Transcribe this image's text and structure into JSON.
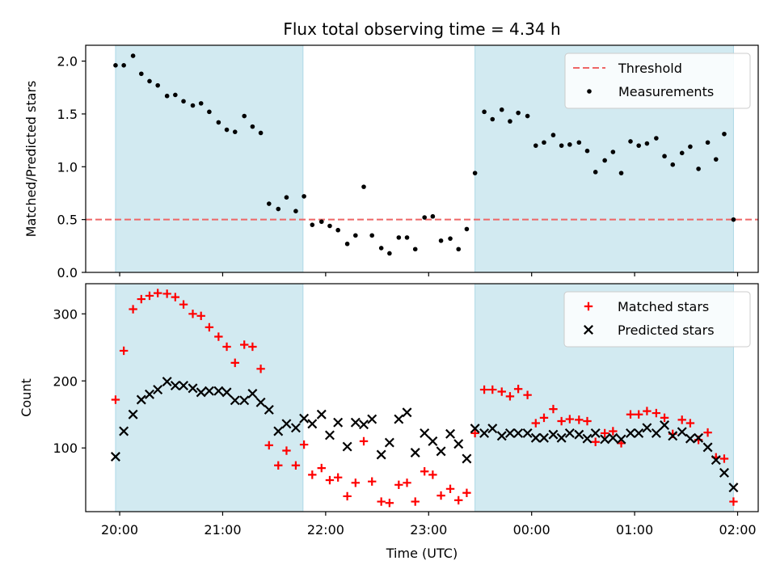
{
  "chart_data": {
    "type": "scatter",
    "title": "Flux total observing time = 4.34 h",
    "xlabel": "Time (UTC)",
    "x_unit": "hours since 20:00 UTC",
    "xlim": [
      -0.33,
      6.2
    ],
    "xticks": [
      {
        "value": 0,
        "label": "20:00"
      },
      {
        "value": 1,
        "label": "21:00"
      },
      {
        "value": 2,
        "label": "22:00"
      },
      {
        "value": 3,
        "label": "23:00"
      },
      {
        "value": 4,
        "label": "00:00"
      },
      {
        "value": 5,
        "label": "01:00"
      },
      {
        "value": 6,
        "label": "02:00"
      }
    ],
    "shaded_intervals": [
      [
        -0.04,
        1.78
      ],
      [
        3.45,
        5.96
      ]
    ],
    "shade_color": "#add8e6",
    "panels": [
      {
        "id": "ratio",
        "ylabel": "Matched/Predicted stars",
        "ylim": [
          0.0,
          2.15
        ],
        "yticks": [
          0.0,
          0.5,
          1.0,
          1.5,
          2.0
        ],
        "ytick_labels": [
          "0.0",
          "0.5",
          "1.0",
          "1.5",
          "2.0"
        ],
        "legend": {
          "position": "top-right"
        },
        "threshold": {
          "name": "Threshold",
          "value": 0.5,
          "color": "#ee6666",
          "style": "dashed"
        },
        "series": [
          {
            "name": "Measurements",
            "marker": "dot",
            "color": "#000000",
            "x": [
              -0.04,
              0.04,
              0.13,
              0.21,
              0.29,
              0.37,
              0.46,
              0.54,
              0.62,
              0.71,
              0.79,
              0.87,
              0.96,
              1.04,
              1.12,
              1.21,
              1.29,
              1.37,
              1.45,
              1.54,
              1.62,
              1.71,
              1.79,
              1.87,
              1.96,
              2.04,
              2.12,
              2.21,
              2.29,
              2.37,
              2.45,
              2.54,
              2.62,
              2.71,
              2.79,
              2.87,
              2.96,
              3.04,
              3.12,
              3.21,
              3.29,
              3.37,
              3.45,
              3.54,
              3.62,
              3.71,
              3.79,
              3.87,
              3.96,
              4.04,
              4.12,
              4.21,
              4.29,
              4.37,
              4.46,
              4.54,
              4.62,
              4.71,
              4.79,
              4.87,
              4.96,
              5.04,
              5.12,
              5.21,
              5.29,
              5.37,
              5.46,
              5.54,
              5.62,
              5.71,
              5.79,
              5.87,
              5.96
            ],
            "y": [
              1.96,
              1.96,
              2.05,
              1.88,
              1.81,
              1.77,
              1.67,
              1.68,
              1.62,
              1.58,
              1.6,
              1.52,
              1.42,
              1.35,
              1.33,
              1.48,
              1.38,
              1.32,
              0.65,
              0.6,
              0.71,
              0.58,
              0.72,
              0.45,
              0.48,
              0.44,
              0.4,
              0.27,
              0.35,
              0.81,
              0.35,
              0.23,
              0.18,
              0.33,
              0.33,
              0.22,
              0.52,
              0.53,
              0.3,
              0.32,
              0.22,
              0.41,
              0.94,
              1.52,
              1.45,
              1.54,
              1.43,
              1.51,
              1.48,
              1.2,
              1.23,
              1.3,
              1.2,
              1.21,
              1.23,
              1.15,
              0.95,
              1.06,
              1.14,
              0.94,
              1.24,
              1.2,
              1.22,
              1.27,
              1.1,
              1.02,
              1.13,
              1.19,
              0.98,
              1.23,
              1.07,
              1.31,
              0.5
            ]
          }
        ]
      },
      {
        "id": "counts",
        "ylabel": "Count",
        "ylim": [
          5,
          345
        ],
        "yticks": [
          100,
          200,
          300
        ],
        "ytick_labels": [
          "100",
          "200",
          "300"
        ],
        "legend": {
          "position": "top-right"
        },
        "series": [
          {
            "name": "Matched stars",
            "marker": "plus",
            "color": "#ff0000",
            "x": [
              -0.04,
              0.04,
              0.13,
              0.21,
              0.29,
              0.37,
              0.46,
              0.54,
              0.62,
              0.71,
              0.79,
              0.87,
              0.96,
              1.04,
              1.12,
              1.21,
              1.29,
              1.37,
              1.45,
              1.54,
              1.62,
              1.71,
              1.79,
              1.87,
              1.96,
              2.04,
              2.12,
              2.21,
              2.29,
              2.37,
              2.45,
              2.54,
              2.62,
              2.71,
              2.79,
              2.87,
              2.96,
              3.04,
              3.12,
              3.21,
              3.29,
              3.37,
              3.45,
              3.54,
              3.62,
              3.71,
              3.79,
              3.87,
              3.96,
              4.04,
              4.12,
              4.21,
              4.29,
              4.37,
              4.46,
              4.54,
              4.62,
              4.71,
              4.79,
              4.87,
              4.96,
              5.04,
              5.12,
              5.21,
              5.29,
              5.37,
              5.46,
              5.54,
              5.62,
              5.71,
              5.79,
              5.87,
              5.96
            ],
            "y": [
              172,
              245,
              307,
              322,
              327,
              331,
              330,
              325,
              314,
              300,
              297,
              280,
              266,
              251,
              227,
              254,
              251,
              218,
              104,
              74,
              96,
              74,
              105,
              60,
              70,
              52,
              56,
              28,
              48,
              110,
              50,
              20,
              18,
              45,
              48,
              20,
              65,
              60,
              29,
              39,
              22,
              33,
              122,
              187,
              187,
              184,
              177,
              188,
              179,
              137,
              145,
              158,
              140,
              143,
              142,
              140,
              109,
              122,
              125,
              107,
              150,
              150,
              155,
              152,
              145,
              121,
              142,
              137,
              112,
              123,
              86,
              84,
              20
            ]
          },
          {
            "name": "Predicted stars",
            "marker": "x",
            "color": "#000000",
            "x": [
              -0.04,
              0.04,
              0.13,
              0.21,
              0.29,
              0.37,
              0.46,
              0.54,
              0.62,
              0.71,
              0.79,
              0.87,
              0.96,
              1.04,
              1.12,
              1.21,
              1.29,
              1.37,
              1.45,
              1.54,
              1.62,
              1.71,
              1.79,
              1.87,
              1.96,
              2.04,
              2.12,
              2.21,
              2.29,
              2.37,
              2.45,
              2.54,
              2.62,
              2.71,
              2.79,
              2.87,
              2.96,
              3.04,
              3.12,
              3.21,
              3.29,
              3.37,
              3.45,
              3.54,
              3.62,
              3.71,
              3.79,
              3.87,
              3.96,
              4.04,
              4.12,
              4.21,
              4.29,
              4.37,
              4.46,
              4.54,
              4.62,
              4.71,
              4.79,
              4.87,
              4.96,
              5.04,
              5.12,
              5.21,
              5.29,
              5.37,
              5.46,
              5.54,
              5.62,
              5.71,
              5.79,
              5.87,
              5.96
            ],
            "y": [
              87,
              125,
              150,
              172,
              180,
              187,
              199,
              193,
              193,
              189,
              183,
              185,
              185,
              183,
              171,
              171,
              181,
              168,
              157,
              125,
              136,
              130,
              144,
              136,
              150,
              119,
              138,
              102,
              138,
              135,
              143,
              90,
              108,
              143,
              153,
              93,
              122,
              110,
              95,
              121,
              106,
              84,
              129,
              122,
              129,
              118,
              122,
              122,
              122,
              115,
              115,
              120,
              115,
              122,
              120,
              114,
              122,
              113,
              115,
              113,
              122,
              122,
              130,
              122,
              134,
              118,
              124,
              114,
              115,
              101,
              82,
              63,
              41
            ]
          }
        ]
      }
    ]
  }
}
